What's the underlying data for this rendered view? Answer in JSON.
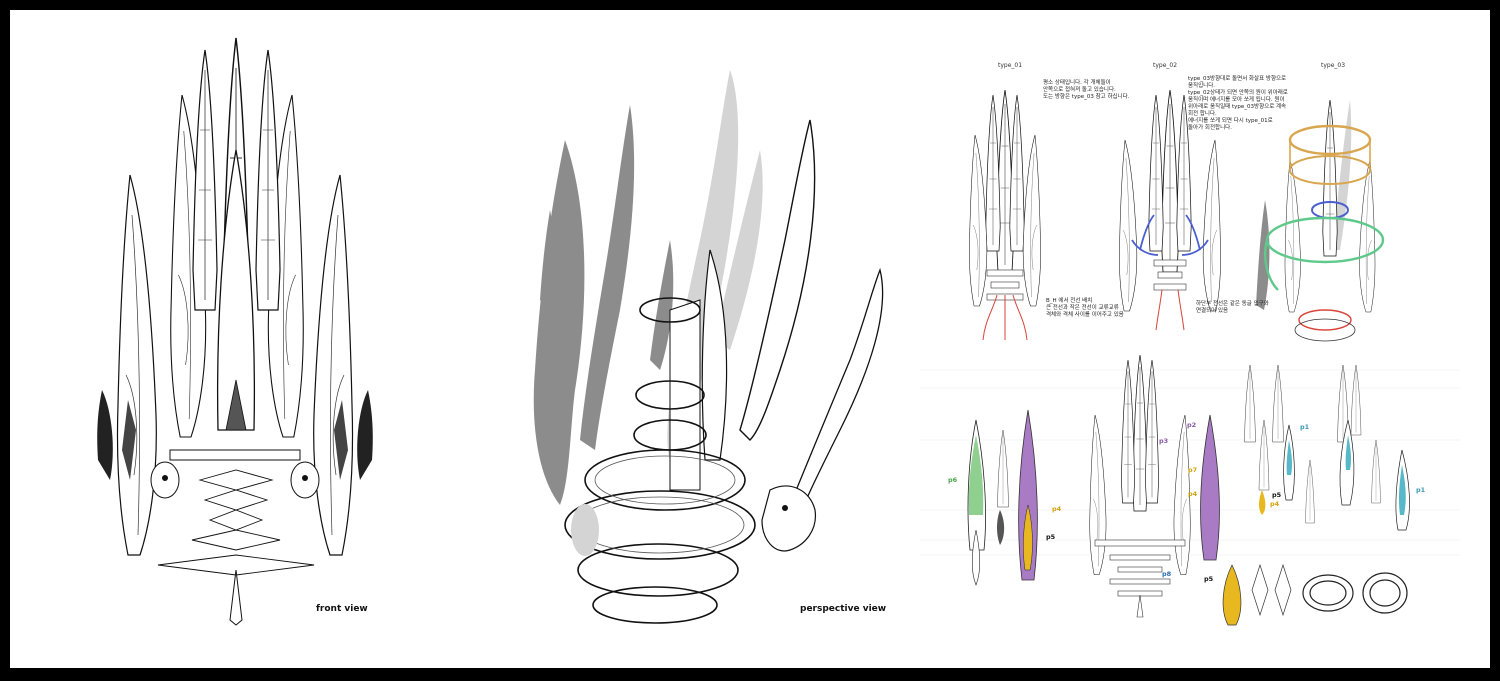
{
  "views": {
    "front_label": "front view",
    "perspective_label": "perspective view"
  },
  "types": {
    "type1": "type_01",
    "type2": "type_02",
    "type3": "type_03"
  },
  "notes": {
    "type1_note": "평소 상태입니다. 각 개체들이\n안쪽으로 접혀져 돌고 있습니다.\n도는 방향은 type_03 참고 하십니다.",
    "type2_note": "type_03방향대로 돌면서 화살표 방향으로\n움직입니다.\ntype_02상태가 되면 안쪽의 원이 위아래로\n움직이며 에너지를 모아 쏘게 됩니다. 원이\n위아래로 움직일때 type_03방향으로 계속\n회전 합니다.\n에너지를 쏘게 되면 다시 type_01로\n돌아가 회전합니다.",
    "bottom_note1": "B_H 에서 전선 배치\n큰 전선과 작은 전선이 교류교류\n격체와 격체 사이를 이어주고 있음",
    "bottom_note2": "하단부 전선은 같은 동글 입구와\n연결되어 있음"
  },
  "parts": {
    "p1a": "p1",
    "p1b": "p1",
    "p2": "p2",
    "p3": "p3",
    "p4a": "p4",
    "p4b": "p4",
    "p4c": "p4",
    "p5a": "p5",
    "p5b": "p5",
    "p5c": "p5",
    "p6": "p6",
    "p7": "p7",
    "p8": "p8"
  },
  "colors": {
    "frame": "#000000",
    "sheet": "#ffffff",
    "grey_dark": "#8c8c8c",
    "grey_light": "#d4d4d4",
    "purple": "#a97bc4",
    "green": "#8fcf8f",
    "gold": "#e8b820",
    "orange_ring": "#d9a650",
    "green_ring": "#5ec98a",
    "blue_arrow": "#4a5fd0",
    "red_wire": "#d9443a",
    "teal": "#57b8c9"
  }
}
